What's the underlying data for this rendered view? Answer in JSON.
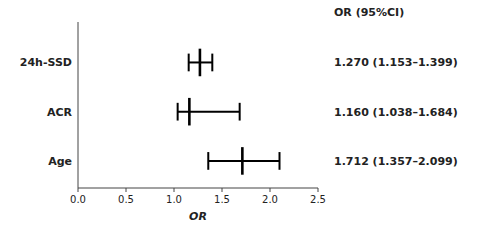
{
  "chart_data": {
    "type": "forest",
    "categories": [
      "24h-SSD",
      "ACR",
      "Age"
    ],
    "values": [
      1.27,
      1.16,
      1.712
    ],
    "ci_lower": [
      1.153,
      1.038,
      1.357
    ],
    "ci_upper": [
      1.399,
      1.684,
      2.099
    ],
    "value_labels": [
      "1.270 (1.153–1.399)",
      "1.160 (1.038–1.684)",
      "1.712 (1.357–2.099)"
    ],
    "label_header": "OR (95%CI)",
    "xlabel": "OR",
    "xlim": [
      0.0,
      2.5
    ],
    "xticks": [
      {
        "value": 0.0,
        "label": "0.0"
      },
      0.5,
      {
        "value": 1.0,
        "label": "1.0"
      },
      1.5,
      {
        "value": 2.0,
        "label": "2.0"
      },
      2.5
    ],
    "color": "black"
  }
}
